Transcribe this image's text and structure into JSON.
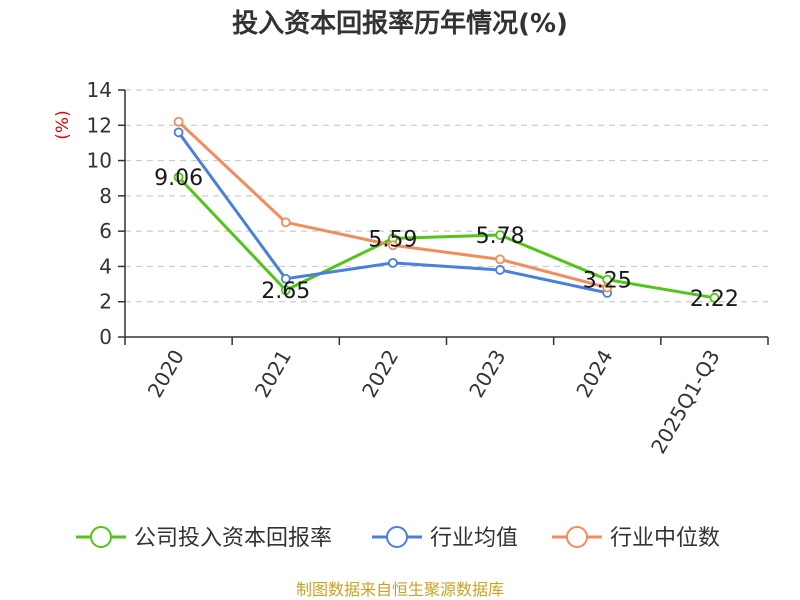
{
  "chart_data": {
    "type": "line",
    "title": "投入资本回报率历年情况(%)",
    "ylabel": "(%)",
    "xlabel": "",
    "ylim": [
      0,
      14
    ],
    "yticks": [
      0,
      2,
      4,
      6,
      8,
      10,
      12,
      14
    ],
    "categories": [
      "2020",
      "2021",
      "2022",
      "2023",
      "2024",
      "2025Q1-Q3"
    ],
    "grid": true,
    "legend_position": "bottom",
    "series": [
      {
        "name": "公司投入资本回报率",
        "color": "#52c41a",
        "values": [
          9.06,
          2.65,
          5.59,
          5.78,
          3.25,
          2.22
        ],
        "labels": [
          "9.06",
          "2.65",
          "5.59",
          "5.78",
          "3.25",
          "2.22"
        ]
      },
      {
        "name": "行业均值",
        "color": "#4a7fdc",
        "values": [
          11.6,
          3.3,
          4.2,
          3.8,
          2.5,
          null
        ]
      },
      {
        "name": "行业中位数",
        "color": "#f28c5c",
        "values": [
          12.2,
          6.5,
          5.2,
          4.4,
          2.8,
          null
        ]
      }
    ],
    "source": "制图数据来自恒生聚源数据库"
  }
}
